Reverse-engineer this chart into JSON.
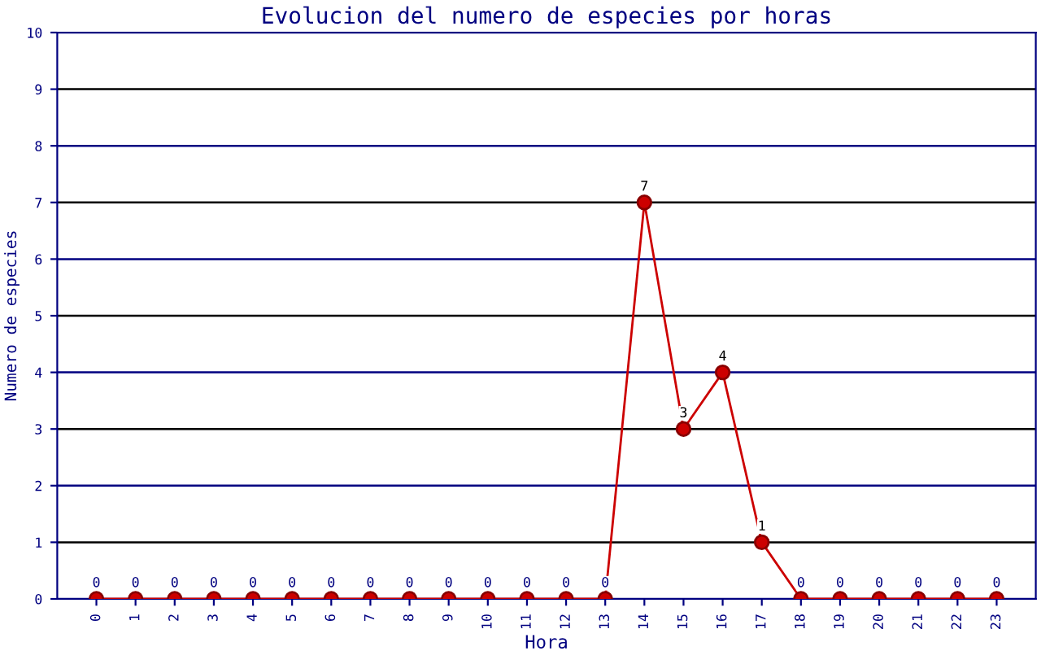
{
  "chart_data": {
    "type": "line",
    "title": "Evolucion del numero de especies por horas",
    "xlabel": "Hora",
    "ylabel": "Numero de especies",
    "categories": [
      "0",
      "1",
      "2",
      "3",
      "4",
      "5",
      "6",
      "7",
      "8",
      "9",
      "10",
      "11",
      "12",
      "13",
      "14",
      "15",
      "16",
      "17",
      "18",
      "19",
      "20",
      "21",
      "22",
      "23"
    ],
    "series": [
      {
        "color": "#cc0000",
        "values": [
          0,
          0,
          0,
          0,
          0,
          0,
          0,
          0,
          0,
          0,
          0,
          0,
          0,
          0,
          7,
          3,
          4,
          1,
          0,
          0,
          0,
          0,
          0,
          0
        ]
      }
    ],
    "ylim": [
      0,
      10
    ],
    "yticks": [
      0,
      1,
      2,
      3,
      4,
      5,
      6,
      7,
      8,
      9,
      10
    ],
    "grid": "y",
    "marker": "circle",
    "line_style": "solid",
    "data_labels": true
  }
}
